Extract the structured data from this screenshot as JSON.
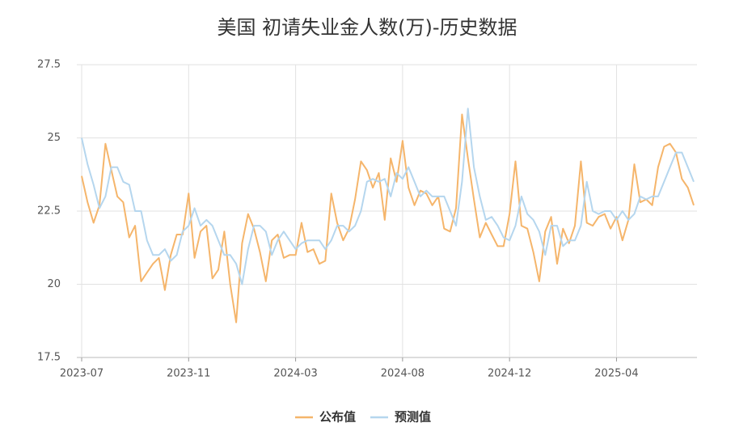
{
  "chart_data": {
    "type": "line",
    "title": "美国 初请失业金人数(万)-历史数据",
    "categories": [
      "2023-07",
      null,
      null,
      null,
      null,
      null,
      null,
      null,
      null,
      null,
      null,
      null,
      null,
      null,
      null,
      null,
      null,
      null,
      "2023-11",
      null,
      null,
      null,
      null,
      null,
      null,
      null,
      null,
      null,
      null,
      null,
      null,
      null,
      null,
      null,
      null,
      null,
      "2024-03",
      null,
      null,
      null,
      null,
      null,
      null,
      null,
      null,
      null,
      null,
      null,
      null,
      null,
      null,
      null,
      null,
      null,
      "2024-08",
      null,
      null,
      null,
      null,
      null,
      null,
      null,
      null,
      null,
      null,
      null,
      null,
      null,
      null,
      null,
      null,
      null,
      "2024-12",
      null,
      null,
      null,
      null,
      null,
      null,
      null,
      null,
      null,
      null,
      null,
      null,
      null,
      null,
      null,
      null,
      null,
      "2025-04",
      null,
      null,
      null,
      null,
      null,
      null,
      null,
      null,
      null,
      null,
      null,
      null,
      null
    ],
    "series": [
      {
        "name": "公布值",
        "color": "#f5b56b",
        "values": [
          23.7,
          22.8,
          22.1,
          22.7,
          24.8,
          23.9,
          23.0,
          22.8,
          21.6,
          22.0,
          20.1,
          20.4,
          20.7,
          20.9,
          19.8,
          21.0,
          21.7,
          21.7,
          23.1,
          20.9,
          21.8,
          22.0,
          20.2,
          20.5,
          21.8,
          20.0,
          18.7,
          21.4,
          22.4,
          21.9,
          21.1,
          20.1,
          21.5,
          21.7,
          20.9,
          21.0,
          21.0,
          22.1,
          21.1,
          21.2,
          20.7,
          20.8,
          23.1,
          22.1,
          21.5,
          21.9,
          22.9,
          24.2,
          23.9,
          23.3,
          23.8,
          22.2,
          24.3,
          23.5,
          24.9,
          23.3,
          22.7,
          23.2,
          23.1,
          22.7,
          23.0,
          21.9,
          21.8,
          22.6,
          25.8,
          24.3,
          22.9,
          21.6,
          22.1,
          21.7,
          21.3,
          21.3,
          22.4,
          24.2,
          22.0,
          21.9,
          21.1,
          20.1,
          21.8,
          22.3,
          20.7,
          21.9,
          21.4,
          22.0,
          24.2,
          22.1,
          22.0,
          22.3,
          22.4,
          21.9,
          22.3,
          21.5,
          22.2,
          24.1,
          22.8,
          22.9,
          22.7,
          24.0,
          24.7,
          24.8,
          24.5,
          23.6,
          23.3,
          22.7
        ]
      },
      {
        "name": "预测值",
        "color": "#b5d6ee",
        "values": [
          25.0,
          24.1,
          23.4,
          22.6,
          23.0,
          24.0,
          24.0,
          23.5,
          23.4,
          22.5,
          22.5,
          21.5,
          21.0,
          21.0,
          21.2,
          20.8,
          21.0,
          21.8,
          22.0,
          22.6,
          22.0,
          22.2,
          22.0,
          21.5,
          21.0,
          21.0,
          20.7,
          20.0,
          21.2,
          22.0,
          22.0,
          21.8,
          21.0,
          21.5,
          21.8,
          21.5,
          21.2,
          21.4,
          21.5,
          21.5,
          21.5,
          21.2,
          21.5,
          22.0,
          22.0,
          21.8,
          22.0,
          22.5,
          23.5,
          23.6,
          23.5,
          23.6,
          23.0,
          23.8,
          23.6,
          24.0,
          23.5,
          23.0,
          23.2,
          23.0,
          23.0,
          23.0,
          22.5,
          22.0,
          23.5,
          26.0,
          24.0,
          23.0,
          22.2,
          22.3,
          22.0,
          21.6,
          21.5,
          22.0,
          23.0,
          22.4,
          22.2,
          21.8,
          21.0,
          22.0,
          22.0,
          21.3,
          21.5,
          21.5,
          22.0,
          23.5,
          22.5,
          22.4,
          22.5,
          22.5,
          22.2,
          22.5,
          22.2,
          22.4,
          23.0,
          22.9,
          23.0,
          23.0,
          23.5,
          24.0,
          24.5,
          24.5,
          24.0,
          23.5
        ]
      }
    ],
    "ylim": [
      17.5,
      27.5
    ],
    "yticks": [
      17.5,
      20,
      22.5,
      25,
      27.5
    ],
    "grid": true
  }
}
